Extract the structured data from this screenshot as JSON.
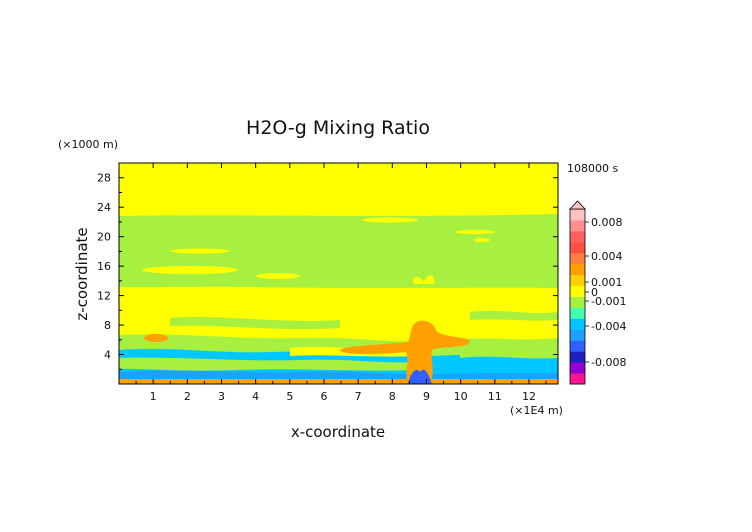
{
  "chart_data": {
    "type": "heatmap",
    "title": "H2O-g Mixing Ratio",
    "xlabel": "x-coordinate",
    "ylabel": "z-coordinate",
    "x_unit": "(×1E4 m)",
    "y_unit": "(×1000 m)",
    "time_label": "108000 s",
    "xlim": [
      0,
      12.85
    ],
    "ylim": [
      0,
      30
    ],
    "x_ticks": [
      "1",
      "2",
      "3",
      "4",
      "5",
      "6",
      "7",
      "8",
      "9",
      "10",
      "11",
      "12"
    ],
    "y_ticks": [
      "4",
      "8",
      "12",
      "16",
      "20",
      "24",
      "28"
    ],
    "colorbar": {
      "labels": [
        "0.008",
        "0.004",
        "0.001",
        "0",
        "-0.001",
        "-0.004",
        "-0.008"
      ],
      "levels": [
        0.008,
        0.004,
        0.001,
        0,
        -0.001,
        -0.004,
        -0.008
      ],
      "colors": [
        "#ff1493",
        "#9400d3",
        "#2020c0",
        "#3060ff",
        "#1ea0ff",
        "#00c8ff",
        "#40ffb0",
        "#a8f040",
        "#ffff00",
        "#ffd000",
        "#ffa000",
        "#ff8040",
        "#ff5040",
        "#ff6060",
        "#ff9090",
        "#ffc0c0"
      ]
    }
  }
}
